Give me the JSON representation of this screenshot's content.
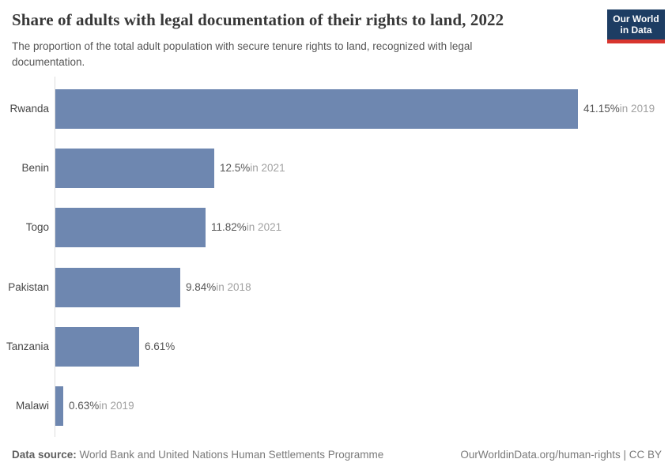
{
  "header": {
    "title": "Share of adults with legal documentation of their rights to land, 2022",
    "subtitle": "The proportion of the total adult population with secure tenure rights to land, recognized with legal documentation.",
    "logo": {
      "line1": "Our World",
      "line2": "in Data"
    }
  },
  "chart_data": {
    "type": "bar",
    "orientation": "horizontal",
    "title": "Share of adults with legal documentation of their rights to land, 2022",
    "categories": [
      "Rwanda",
      "Benin",
      "Togo",
      "Pakistan",
      "Tanzania",
      "Malawi"
    ],
    "values": [
      41.15,
      12.5,
      11.82,
      9.84,
      6.61,
      0.63
    ],
    "value_labels": [
      "41.15%",
      "12.5%",
      "11.82%",
      "9.84%",
      "6.61%",
      "0.63%"
    ],
    "year_labels": [
      "in 2019",
      "in 2021",
      "in 2021",
      "in 2018",
      "",
      "in 2019"
    ],
    "xlabel": "",
    "ylabel": "",
    "xlim": [
      0,
      41.15
    ],
    "grid": false,
    "legend": "none",
    "bar_color": "#6e87b0"
  },
  "footer": {
    "source_label": "Data source:",
    "source_text": " World Bank and United Nations Human Settlements Programme",
    "attribution": "OurWorldinData.org/human-rights | CC BY"
  },
  "colors": {
    "bar": "#6e87b0",
    "axis_line": "#dcdcdc",
    "logo_background": "#1d3d63",
    "logo_stripe": "#d8352e",
    "title_text": "#383838",
    "subtitle_text": "#555555",
    "category_text": "#464646",
    "value_text": "#565656",
    "year_text": "#a1a1a1",
    "footer_text": "#7a7a7a"
  }
}
